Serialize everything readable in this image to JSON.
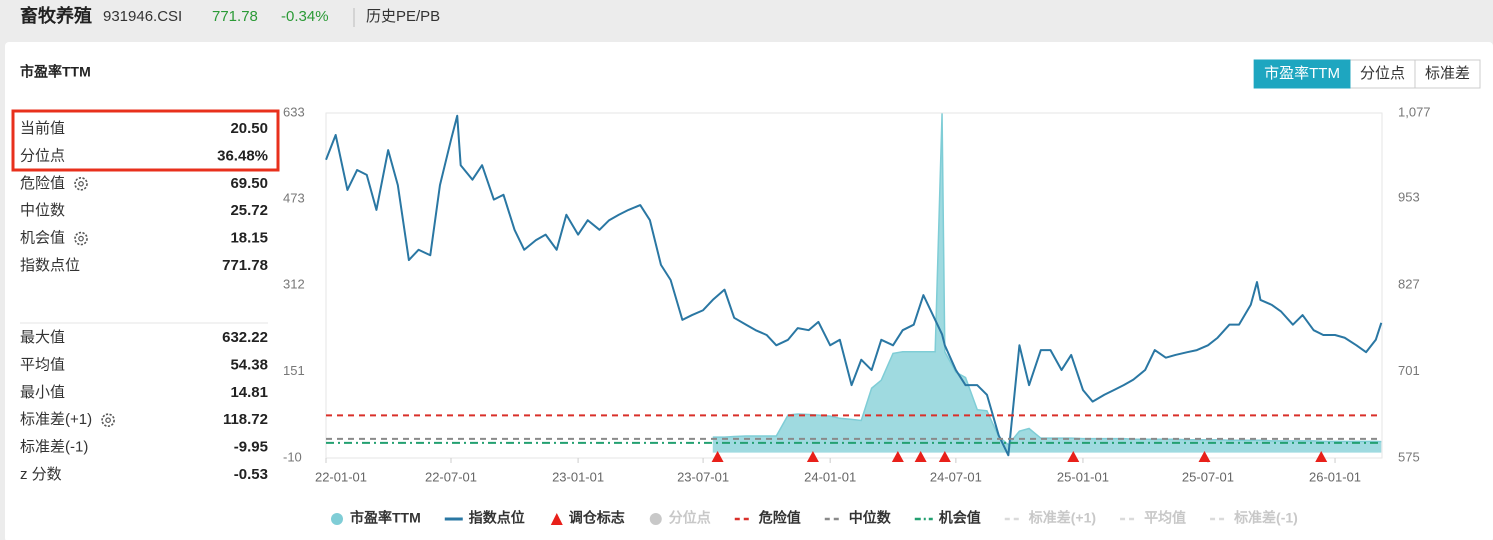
{
  "header": {
    "name": "畜牧养殖",
    "code": "931946.CSI",
    "price": "771.78",
    "change": "-0.34%",
    "link": "历史PE/PB"
  },
  "panel": {
    "title": "市盈率TTM",
    "tabs": [
      "市盈率TTM",
      "分位点",
      "标准差"
    ]
  },
  "stats": {
    "rows": [
      {
        "label": "当前值",
        "value": "20.50"
      },
      {
        "label": "分位点",
        "value": "36.48%"
      },
      {
        "label": "危险值",
        "value": "69.50",
        "gear": true
      },
      {
        "label": "中位数",
        "value": "25.72"
      },
      {
        "label": "机会值",
        "value": "18.15",
        "gear": true
      },
      {
        "label": "指数点位",
        "value": "771.78"
      }
    ],
    "rows2": [
      {
        "label": "最大值",
        "value": "632.22"
      },
      {
        "label": "平均值",
        "value": "54.38"
      },
      {
        "label": "最小值",
        "value": "14.81"
      },
      {
        "label": "标准差(+1)",
        "value": "118.72",
        "gear": true
      },
      {
        "label": "标准差(-1)",
        "value": "-9.95"
      },
      {
        "label": "z 分数",
        "value": "-0.53"
      }
    ]
  },
  "chart_data": {
    "type": "line",
    "x": [
      "22-01-01",
      "22-01-15",
      "22-02-01",
      "22-02-15",
      "22-03-01",
      "22-03-15",
      "22-04-01",
      "22-04-15",
      "22-05-01",
      "22-05-15",
      "22-06-01",
      "22-06-15",
      "22-07-01",
      "22-07-10",
      "22-07-15",
      "22-08-01",
      "22-08-15",
      "22-09-01",
      "22-09-15",
      "22-10-01",
      "22-10-15",
      "22-11-01",
      "22-11-15",
      "22-12-01",
      "22-12-15",
      "23-01-01",
      "23-01-15",
      "23-02-01",
      "23-02-15",
      "23-03-01",
      "23-03-15",
      "23-04-01",
      "23-04-15",
      "23-05-01",
      "23-05-15",
      "23-06-01",
      "23-06-15",
      "23-07-01",
      "23-07-15",
      "23-08-01",
      "23-08-15",
      "23-09-01",
      "23-09-15",
      "23-10-01",
      "23-10-15",
      "23-11-01",
      "23-11-15",
      "23-12-01",
      "23-12-15",
      "24-01-01",
      "24-01-15",
      "24-02-01",
      "24-02-15",
      "24-03-01",
      "24-03-15",
      "24-04-01",
      "24-04-15",
      "24-05-01",
      "24-05-15",
      "24-06-01",
      "24-06-11",
      "24-06-15",
      "24-07-01",
      "24-07-15",
      "24-08-01",
      "24-08-15",
      "24-09-01",
      "24-09-15",
      "24-10-01",
      "24-10-15",
      "24-11-01",
      "24-11-15",
      "24-12-01",
      "24-12-15",
      "25-01-01",
      "25-01-15",
      "25-02-01",
      "25-02-15",
      "25-03-01",
      "25-03-15",
      "25-04-01",
      "25-04-15",
      "25-05-01",
      "25-05-15",
      "25-06-01",
      "25-06-15",
      "25-07-01",
      "25-07-15",
      "25-08-01",
      "25-08-15",
      "25-09-01",
      "25-09-10",
      "25-09-15",
      "25-10-01",
      "25-10-15",
      "25-11-01",
      "25-11-15",
      "25-12-01",
      "25-12-15",
      "26-01-01",
      "26-01-15",
      "26-02-01",
      "26-02-15",
      "26-03-01",
      "26-03-09"
    ],
    "series": [
      {
        "name": "市盈率TTM",
        "color": "#7fcdd6",
        "values": [
          null,
          null,
          null,
          null,
          null,
          null,
          null,
          null,
          null,
          null,
          null,
          null,
          null,
          null,
          null,
          null,
          null,
          null,
          null,
          null,
          null,
          null,
          null,
          null,
          null,
          null,
          null,
          null,
          null,
          null,
          null,
          null,
          null,
          null,
          null,
          null,
          null,
          null,
          29,
          29,
          30,
          31,
          31,
          31,
          31,
          70,
          72,
          71,
          70,
          68,
          64,
          62,
          60,
          120,
          135,
          185,
          188,
          188,
          188,
          188,
          632.22,
          188,
          150,
          140,
          80,
          78,
          30,
          14.81,
          40,
          45,
          27,
          27,
          27,
          27,
          26,
          26,
          26,
          26,
          26,
          25,
          25,
          25,
          25,
          25,
          24,
          24,
          24,
          24,
          23,
          23,
          23,
          23,
          23,
          22,
          22,
          22,
          22,
          22,
          21,
          21,
          21,
          21,
          21,
          21,
          20.5
        ]
      },
      {
        "name": "指数点位",
        "color": "#2a77a3",
        "axis": "y2",
        "values": [
          1009,
          1045,
          965,
          994,
          987,
          936,
          1023,
          972,
          863,
          878,
          870,
          972,
          1038,
          1073,
          1001,
          980,
          1001,
          951,
          958,
          907,
          878,
          892,
          900,
          878,
          929,
          900,
          921,
          907,
          921,
          929,
          936,
          943,
          921,
          856,
          834,
          776,
          783,
          790,
          805,
          820,
          779,
          769,
          761,
          754,
          739,
          747,
          764,
          761,
          773,
          739,
          747,
          681,
          718,
          703,
          747,
          739,
          761,
          769,
          812,
          776,
          755,
          739,
          703,
          681,
          681,
          667,
          608,
          579,
          739,
          681,
          732,
          732,
          703,
          725,
          674,
          657,
          667,
          674,
          681,
          689,
          703,
          732,
          721,
          725,
          729,
          732,
          739,
          750,
          769,
          769,
          798,
          831,
          805,
          798,
          788,
          769,
          783,
          761,
          754,
          754,
          750,
          739,
          729,
          747,
          771.78
        ]
      }
    ],
    "markers": {
      "name": "调仓标志",
      "color": "#e8201a",
      "x": [
        "23-07-22",
        "23-12-07",
        "24-04-08",
        "24-05-11",
        "24-06-15",
        "24-12-18",
        "25-06-26",
        "25-12-12"
      ]
    },
    "reference_lines": [
      {
        "name": "危险值",
        "color": "#d9302a",
        "dash": "6,5",
        "value": 69.5
      },
      {
        "name": "中位数",
        "color": "#8a8a8a",
        "dash": "6,5",
        "value": 25.72
      },
      {
        "name": "机会值",
        "color": "#23a071",
        "dash": "8,4,2,4",
        "value": 18.15
      }
    ],
    "hidden_legend": [
      {
        "name": "分位点",
        "symbol": "circle"
      },
      {
        "name": "标准差(+1)",
        "symbol": "dash"
      },
      {
        "name": "平均值",
        "symbol": "dash"
      },
      {
        "name": "标准差(-1)",
        "symbol": "dash"
      }
    ],
    "xlim": [
      "22-01-01",
      "26-03-10"
    ],
    "xticks": [
      "22-01-01",
      "22-07-01",
      "23-01-01",
      "23-07-01",
      "24-01-01",
      "24-07-01",
      "25-01-01",
      "25-07-01",
      "26-01-01"
    ],
    "ylim": [
      -10,
      633
    ],
    "yticks": [
      -10,
      151,
      312,
      473,
      633
    ],
    "y2lim": [
      575,
      1077
    ],
    "y2ticks": [
      575,
      701,
      827,
      953,
      {
        "value": 1077,
        "label": "1,077"
      }
    ]
  }
}
